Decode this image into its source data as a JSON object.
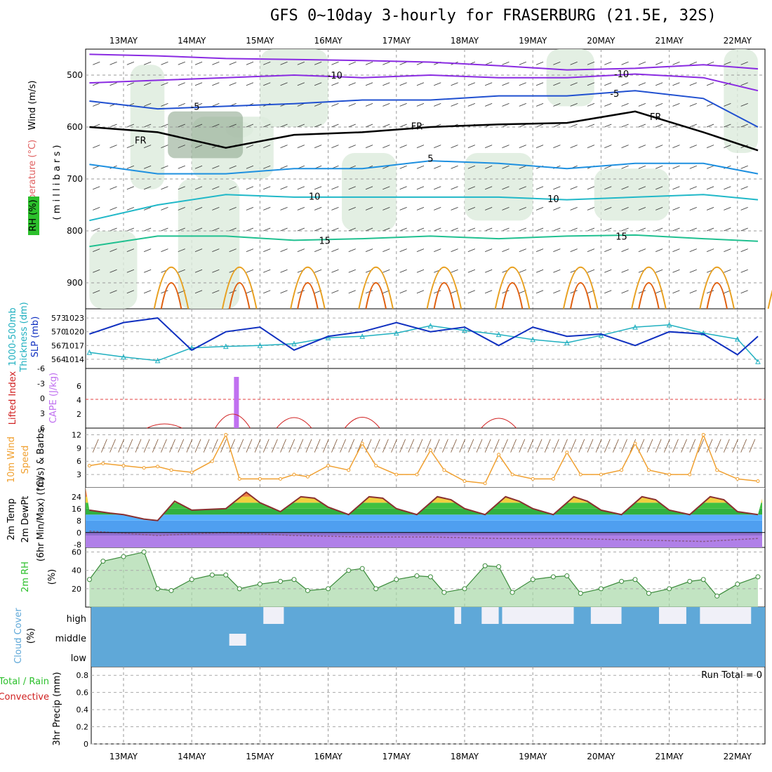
{
  "title": "GFS 0~10day 3-hourly for FRASERBURG (21.5E, 32S)",
  "run_total_label": "Run Total = 0",
  "dates": [
    "13MAY",
    "14MAY",
    "15MAY",
    "16MAY",
    "17MAY",
    "18MAY",
    "19MAY",
    "20MAY",
    "21MAY",
    "22MAY"
  ],
  "colors": {
    "purple": "#8a2be2",
    "blue": "#2050d0",
    "skyblue": "#1e90e0",
    "teal": "#20b8c8",
    "green": "#20c090",
    "orange": "#e8a020",
    "darkorange": "#e06010",
    "rh_green": "#2cc02c",
    "slp": "#1030c0",
    "thick": "#20b0c0",
    "cape": "#c070f0",
    "li": "#d02020",
    "wind": "#f0a030",
    "cloud": "#5fa8d8",
    "dewpt": "#8a5a8a"
  },
  "panel_labels": {
    "upper": {
      "wind": "Wind (m/s)",
      "temp": "Temperature (°C)",
      "rh": "RH (%)",
      "mb": "( m i l l i b a r s )"
    },
    "thick": {
      "thickness": "Thickness (dm)",
      "thickmb": "1000-500mb",
      "slp": "SLP (mb)"
    },
    "cape": {
      "li": "Lifted Index",
      "cape": "CAPE (J/kg)"
    },
    "wind10": {
      "l1": "10m Wind",
      "l2": "Speed",
      "l3": "(m/s) & Barbs"
    },
    "temp2m": {
      "l1": "2m Temp",
      "l2": "2m DewPt",
      "l3": "(6hr Min/Max) (°C)"
    },
    "rh2m": {
      "l1": "2m RH",
      "l2": "(%)"
    },
    "cloud": {
      "l1": "Cloud Cover",
      "l2": "(%)",
      "high": "high",
      "middle": "middle",
      "low": "low"
    },
    "precip": {
      "l1": "Total / Rain",
      "l2": "Convective",
      "l3": "3hr Precip (mm)"
    }
  },
  "chart_data": [
    {
      "type": "line",
      "panel": "upper-air",
      "y_axis": {
        "label": "millibars",
        "ticks": [
          500,
          600,
          700,
          800,
          900
        ],
        "range": [
          450,
          950
        ],
        "inverted": true
      },
      "isotherm_labels": [
        {
          "text": "-10",
          "day": 3.1,
          "mb": 500
        },
        {
          "text": "-10",
          "day": 7.3,
          "mb": 497
        },
        {
          "text": "-5",
          "day": 1.05,
          "mb": 560
        },
        {
          "text": "-5",
          "day": 7.2,
          "mb": 535
        },
        {
          "text": "FR",
          "day": 0.25,
          "mb": 625
        },
        {
          "text": "FR",
          "day": 4.3,
          "mb": 598
        },
        {
          "text": "FR",
          "day": 7.8,
          "mb": 580
        },
        {
          "text": "5",
          "day": 4.5,
          "mb": 660
        },
        {
          "text": "10",
          "day": 2.8,
          "mb": 733
        },
        {
          "text": "10",
          "day": 6.3,
          "mb": 738
        },
        {
          "text": "15",
          "day": 2.95,
          "mb": 818
        },
        {
          "text": "15",
          "day": 7.3,
          "mb": 810
        }
      ],
      "series": [
        {
          "label": "-10",
          "color": "#8a2be2",
          "x": [
            -0.5,
            0.5,
            1.5,
            2.5,
            3.5,
            4.5,
            5.5,
            6.5,
            7.5,
            8.5,
            9.3
          ],
          "mb": [
            460,
            463,
            468,
            470,
            472,
            475,
            482,
            490,
            487,
            480,
            488
          ]
        },
        {
          "label": "-10",
          "color": "#8a2be2",
          "x": [
            -0.5,
            0.5,
            1.5,
            2.5,
            3.5,
            4.5,
            5.5,
            6.5,
            7.5,
            8.5,
            9.3
          ],
          "mb": [
            515,
            510,
            505,
            500,
            505,
            500,
            505,
            505,
            498,
            505,
            530
          ]
        },
        {
          "label": "-5",
          "color": "#2050d0",
          "x": [
            -0.5,
            0.5,
            1.5,
            2.5,
            3.5,
            4.5,
            5.5,
            6.5,
            7.5,
            8.5,
            9.3
          ],
          "mb": [
            550,
            565,
            560,
            555,
            548,
            548,
            540,
            540,
            530,
            545,
            600
          ]
        },
        {
          "label": "FR",
          "color": "#000000",
          "x": [
            -0.5,
            0.5,
            1.5,
            2.5,
            3.5,
            4.5,
            5.5,
            6.5,
            7.5,
            8.5,
            9.3
          ],
          "mb": [
            600,
            610,
            640,
            615,
            610,
            600,
            595,
            592,
            570,
            610,
            645
          ]
        },
        {
          "label": "5",
          "color": "#1e90e0",
          "x": [
            -0.5,
            0.5,
            1.5,
            2.5,
            3.5,
            4.5,
            5.5,
            6.5,
            7.5,
            8.5,
            9.3
          ],
          "mb": [
            672,
            690,
            690,
            680,
            680,
            665,
            670,
            680,
            670,
            670,
            690
          ]
        },
        {
          "label": "10",
          "color": "#20b8c8",
          "x": [
            -0.5,
            0.5,
            1.5,
            2.5,
            3.5,
            4.5,
            5.5,
            6.5,
            7.5,
            8.5,
            9.3
          ],
          "mb": [
            780,
            750,
            730,
            735,
            735,
            735,
            735,
            740,
            735,
            730,
            740
          ]
        },
        {
          "label": "15",
          "color": "#20c090",
          "x": [
            -0.5,
            0.5,
            1.5,
            2.5,
            3.5,
            4.5,
            5.5,
            6.5,
            7.5,
            8.5,
            9.3
          ],
          "mb": [
            830,
            810,
            810,
            818,
            815,
            810,
            815,
            810,
            808,
            815,
            820
          ]
        }
      ]
    },
    {
      "type": "line",
      "panel": "thickness-slp",
      "left_axis": {
        "label": "Thickness (dm)",
        "ticks": [
          564,
          567,
          570,
          573
        ]
      },
      "right_axis": {
        "label": "SLP (mb)",
        "ticks": [
          1014,
          1017,
          1020,
          1023
        ]
      },
      "series": [
        {
          "name": "1000-500mb Thickness",
          "color": "#20b0c0",
          "x": [
            -0.5,
            0,
            0.5,
            1,
            1.5,
            2,
            2.5,
            3,
            3.5,
            4,
            4.5,
            5,
            5.5,
            6,
            6.5,
            7,
            7.5,
            8,
            8.5,
            9,
            9.3
          ],
          "values": [
            565.5,
            564.5,
            563.7,
            566.5,
            566.8,
            567.0,
            567.4,
            568.7,
            569.0,
            569.7,
            571.3,
            570.3,
            569.4,
            568.3,
            567.6,
            569.2,
            571.0,
            571.5,
            569.7,
            568.4,
            563.5
          ]
        },
        {
          "name": "SLP",
          "color": "#1030c0",
          "x": [
            -0.5,
            0,
            0.5,
            1,
            1.5,
            2,
            2.5,
            3,
            3.5,
            4,
            4.5,
            5,
            5.5,
            6,
            6.5,
            7,
            7.5,
            8,
            8.5,
            9,
            9.3
          ],
          "values": [
            1019.5,
            1022,
            1023,
            1016,
            1020,
            1021,
            1016,
            1019,
            1020,
            1022,
            1020,
            1021,
            1017,
            1021,
            1019,
            1019.5,
            1017,
            1020,
            1019.5,
            1015,
            1019
          ]
        }
      ]
    },
    {
      "type": "bar",
      "panel": "cape-li",
      "left_axis": {
        "label": "Lifted Index",
        "ticks": [
          -6,
          -3,
          0,
          3,
          6
        ]
      },
      "right_axis": {
        "label": "CAPE (J/kg)",
        "ticks": [
          2,
          4,
          6
        ]
      },
      "cape_bars": [
        {
          "day": 1.65,
          "value": 7.3
        }
      ],
      "li_zero": 4.1,
      "lifted_index_peaks": [
        {
          "day": 0.6,
          "value": 0.2
        },
        {
          "day": 1.6,
          "value": 3.0
        },
        {
          "day": 2.5,
          "value": 2.0
        },
        {
          "day": 3.5,
          "value": 2.1
        },
        {
          "day": 5.5,
          "value": 1.8
        }
      ]
    },
    {
      "type": "line",
      "panel": "10m-wind",
      "y_axis": {
        "label": "(m/s)",
        "ticks": [
          3,
          6,
          9,
          12
        ]
      },
      "series": [
        {
          "name": "10m Wind Speed",
          "color": "#f0a030",
          "x": [
            -0.5,
            -0.3,
            0,
            0.3,
            0.5,
            0.7,
            1,
            1.3,
            1.5,
            1.7,
            2,
            2.3,
            2.5,
            2.7,
            3,
            3.3,
            3.5,
            3.7,
            4,
            4.3,
            4.5,
            4.7,
            5,
            5.3,
            5.5,
            5.7,
            6,
            6.3,
            6.5,
            6.7,
            7,
            7.3,
            7.5,
            7.7,
            8,
            8.3,
            8.5,
            8.7,
            9,
            9.3
          ],
          "values": [
            5,
            5.5,
            5,
            4.5,
            4.8,
            4,
            3.5,
            6,
            12,
            2,
            2,
            2,
            3,
            2.5,
            5,
            4,
            10,
            5,
            3,
            3,
            8.5,
            4,
            1.5,
            1,
            7.5,
            3,
            2,
            2,
            8,
            3,
            3,
            4,
            10,
            4,
            3,
            3,
            12,
            4,
            2,
            1.5
          ]
        }
      ]
    },
    {
      "type": "area",
      "panel": "2m-temp",
      "y_axis": {
        "label": "(°C)",
        "ticks": [
          -8,
          0,
          8,
          16,
          24
        ]
      },
      "series": [
        {
          "name": "2m Temp",
          "color": "#8a3030",
          "x": [
            -0.5,
            -0.2,
            0,
            0.3,
            0.5,
            0.75,
            1,
            1.5,
            1.8,
            2,
            2.3,
            2.6,
            2.8,
            3,
            3.3,
            3.6,
            3.8,
            4,
            4.3,
            4.6,
            4.8,
            5,
            5.3,
            5.6,
            5.8,
            6,
            6.3,
            6.6,
            6.8,
            7,
            7.3,
            7.6,
            7.8,
            8,
            8.3,
            8.6,
            8.8,
            9,
            9.3
          ],
          "values": [
            15,
            13,
            12,
            9,
            8,
            21,
            15,
            16,
            27,
            20,
            14,
            24,
            23,
            17,
            12,
            24,
            23,
            16,
            12,
            24,
            22,
            16,
            12,
            24,
            21,
            16,
            12,
            24,
            21,
            15,
            12,
            24,
            22,
            15,
            12,
            24,
            22,
            14,
            12
          ]
        },
        {
          "name": "2m DewPt",
          "color": "#8a5a8a",
          "x": [
            -0.5,
            0.5,
            1.5,
            2.5,
            3.5,
            4.5,
            5.5,
            6.5,
            7.5,
            8.5,
            9.3
          ],
          "values": [
            1,
            -2,
            0,
            -2,
            -3,
            -3,
            -4,
            -4,
            -5,
            -6,
            -4
          ]
        }
      ]
    },
    {
      "type": "line",
      "panel": "2m-rh",
      "y_axis": {
        "label": "(%)",
        "ticks": [
          20,
          40,
          60
        ]
      },
      "series": [
        {
          "name": "2m RH",
          "color": "#2cc02c",
          "x": [
            -0.5,
            -0.3,
            0,
            0.3,
            0.5,
            0.7,
            1,
            1.3,
            1.5,
            1.7,
            2,
            2.3,
            2.5,
            2.7,
            3,
            3.3,
            3.5,
            3.7,
            4,
            4.3,
            4.5,
            4.7,
            5,
            5.3,
            5.5,
            5.7,
            6,
            6.3,
            6.5,
            6.7,
            7,
            7.3,
            7.5,
            7.7,
            8,
            8.3,
            8.5,
            8.7,
            9,
            9.3
          ],
          "values": [
            30,
            50,
            55,
            60,
            20,
            18,
            30,
            35,
            35,
            20,
            25,
            28,
            30,
            18,
            20,
            40,
            42,
            20,
            30,
            34,
            33,
            16,
            20,
            45,
            44,
            16,
            30,
            33,
            34,
            15,
            20,
            28,
            30,
            15,
            20,
            28,
            30,
            12,
            25,
            33
          ]
        }
      ]
    },
    {
      "type": "heatmap",
      "panel": "cloud-cover",
      "rows": [
        "high",
        "middle",
        "low"
      ],
      "note": "mostly full cover; sparse gaps in high layer"
    },
    {
      "type": "line",
      "panel": "3hr-precip",
      "y_axis": {
        "label": "3hr Precip (mm)",
        "ticks": [
          0,
          0.2,
          0.4,
          0.6,
          0.8
        ],
        "range": [
          0,
          0.9
        ]
      },
      "series": []
    }
  ]
}
